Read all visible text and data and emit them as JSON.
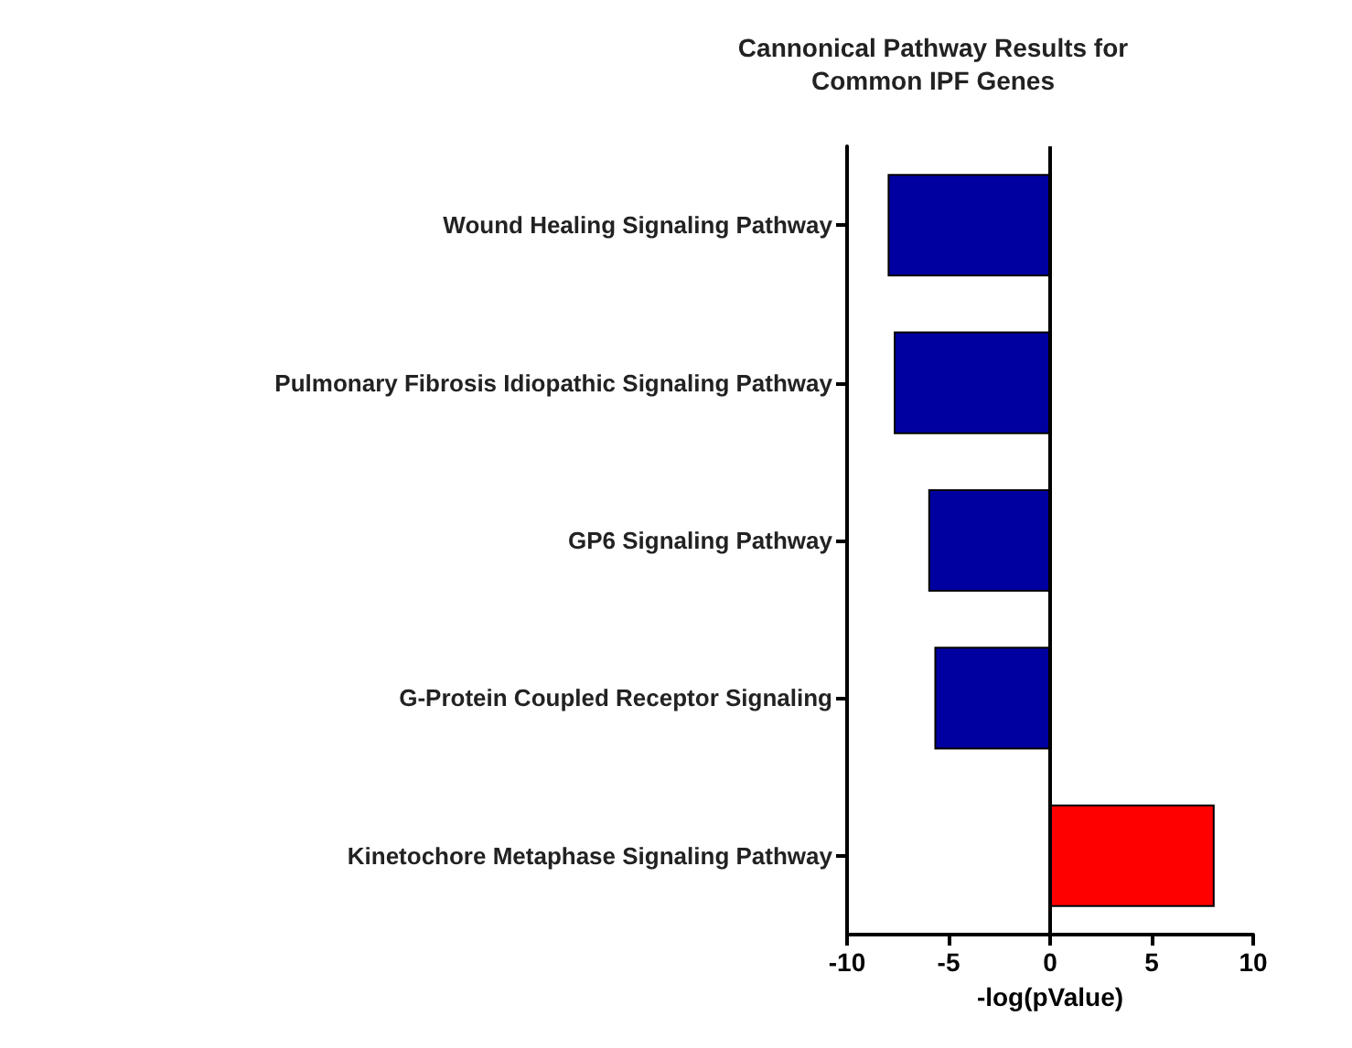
{
  "chart_data": {
    "type": "bar",
    "orientation": "horizontal",
    "title": "Cannonical Pathway Results for\nCommon IPF Genes",
    "xlabel": "-log(pValue)",
    "categories": [
      "Wound Healing Signaling Pathway",
      "Pulmonary Fibrosis Idiopathic Signaling Pathway",
      "GP6 Signaling Pathway",
      "G-Protein Coupled Receptor Signaling",
      "Kinetochore Metaphase Signaling Pathway"
    ],
    "values": [
      -8.0,
      -7.7,
      -6.0,
      -5.7,
      8.1
    ],
    "colors": [
      "#0000a0",
      "#0000a0",
      "#0000a0",
      "#0000a0",
      "#ff0000"
    ],
    "xlim": [
      -10,
      10
    ],
    "xticks": [
      -10,
      -5,
      0,
      5,
      10
    ],
    "ref_lines": [
      {
        "axis": "x",
        "value": 0,
        "color": "#000000"
      }
    ],
    "grid": false
  }
}
